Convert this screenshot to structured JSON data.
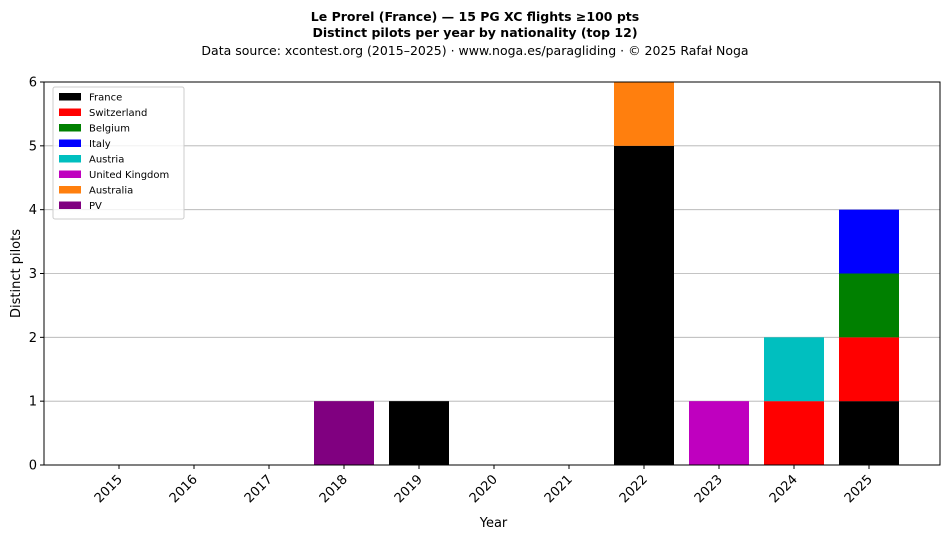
{
  "chart_data": {
    "type": "bar",
    "stacked": true,
    "title": "Le Prorel (France)  —  15 PG XC flights ≥100 pts",
    "subtitle": "Distinct pilots per year by nationality (top 12)",
    "source_line": "Data source: xcontest.org (2015–2025)  ·  www.noga.es/paragliding  ·  © 2025 Rafał Noga",
    "xlabel": "Year",
    "ylabel": "Distinct pilots",
    "ylim": [
      0,
      6
    ],
    "yticks": [
      0,
      1,
      2,
      3,
      4,
      5,
      6
    ],
    "grid": "horizontal",
    "legend_position": "top-left",
    "categories": [
      "2015",
      "2016",
      "2017",
      "2018",
      "2019",
      "2020",
      "2021",
      "2022",
      "2023",
      "2024",
      "2025"
    ],
    "series": [
      {
        "name": "France",
        "color": "#000000",
        "values": [
          0,
          0,
          0,
          0,
          1,
          0,
          0,
          5,
          0,
          0,
          1
        ]
      },
      {
        "name": "Switzerland",
        "color": "#ff0000",
        "values": [
          0,
          0,
          0,
          0,
          0,
          0,
          0,
          0,
          0,
          1,
          1
        ]
      },
      {
        "name": "Belgium",
        "color": "#008000",
        "values": [
          0,
          0,
          0,
          0,
          0,
          0,
          0,
          0,
          0,
          0,
          1
        ]
      },
      {
        "name": "Italy",
        "color": "#0000ff",
        "values": [
          0,
          0,
          0,
          0,
          0,
          0,
          0,
          0,
          0,
          0,
          1
        ]
      },
      {
        "name": "Austria",
        "color": "#00bfbf",
        "values": [
          0,
          0,
          0,
          0,
          0,
          0,
          0,
          0,
          0,
          1,
          0
        ]
      },
      {
        "name": "United Kingdom",
        "color": "#bf00bf",
        "values": [
          0,
          0,
          0,
          0,
          0,
          0,
          0,
          0,
          1,
          0,
          0
        ]
      },
      {
        "name": "Australia",
        "color": "#ff7f0e",
        "values": [
          0,
          0,
          0,
          0,
          0,
          0,
          0,
          1,
          0,
          0,
          0
        ]
      },
      {
        "name": "PV",
        "color": "#800080",
        "values": [
          0,
          0,
          0,
          1,
          0,
          0,
          0,
          0,
          0,
          0,
          0
        ]
      }
    ]
  }
}
